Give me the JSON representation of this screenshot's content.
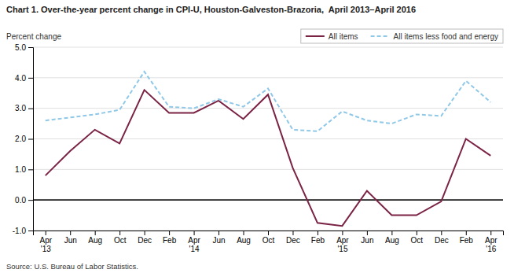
{
  "chart_data": {
    "type": "line",
    "title": "Chart 1. Over-the-year percent change in CPI-U, Houston-Galveston-Brazoria,  April 2013–April 2016",
    "ylabel": "Percent change",
    "source": "Source: U.S. Bureau of Labor Statistics.",
    "categories": [
      "Apr\n'13",
      "Jun",
      "Aug",
      "Oct",
      "Dec",
      "Feb",
      "Apr\n'14",
      "Jun",
      "Aug",
      "Oct",
      "Dec",
      "Feb",
      "Apr\n'15",
      "Jun",
      "Aug",
      "Oct",
      "Dec",
      "Feb",
      "Apr\n'16"
    ],
    "series": [
      {
        "name": "All items",
        "color": "#7B2345",
        "line_style": "solid",
        "values": [
          0.8,
          1.6,
          2.3,
          1.85,
          3.6,
          2.85,
          2.85,
          3.25,
          2.65,
          3.45,
          1.05,
          -0.75,
          -0.85,
          0.3,
          -0.5,
          -0.5,
          -0.05,
          2.0,
          1.45
        ]
      },
      {
        "name": "All items less food and energy",
        "color": "#90C8E8",
        "line_style": "dashed",
        "values": [
          2.6,
          2.7,
          2.8,
          2.95,
          4.2,
          3.05,
          3.0,
          3.3,
          3.05,
          3.65,
          2.3,
          2.25,
          2.9,
          2.6,
          2.5,
          2.8,
          2.75,
          3.9,
          3.2
        ]
      }
    ],
    "ylim": [
      -1.0,
      5.0
    ],
    "yticks": [
      {
        "value": -1.0,
        "label": "-1.0"
      },
      {
        "value": 0.0,
        "label": "0.0"
      },
      {
        "value": 1.0,
        "label": "1.0"
      },
      {
        "value": 2.0,
        "label": "2.0"
      },
      {
        "value": 3.0,
        "label": "3.0"
      },
      {
        "value": 4.0,
        "label": "4.0"
      },
      {
        "value": 5.0,
        "label": "5.0"
      }
    ],
    "grid": true,
    "legend": "upper right"
  }
}
